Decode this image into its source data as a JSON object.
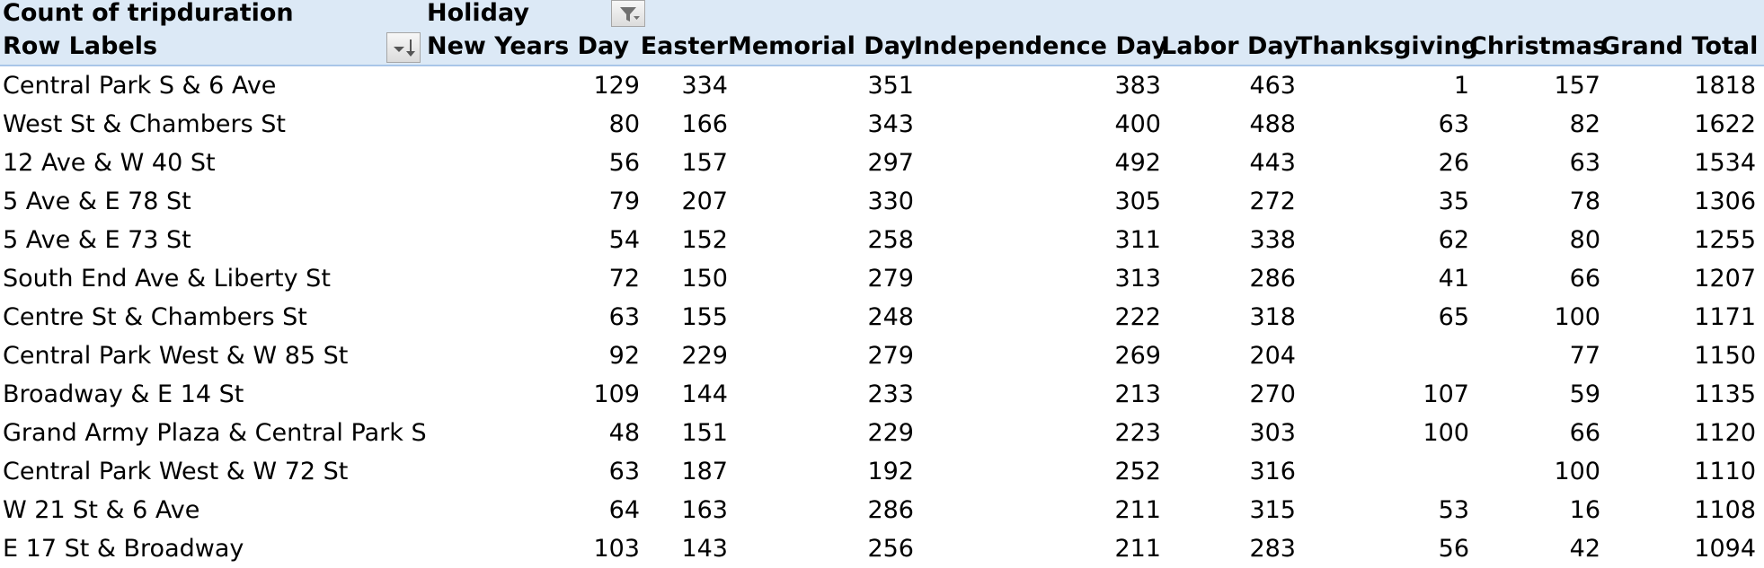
{
  "pivot": {
    "value_field": "Count of tripduration",
    "column_field": "Holiday",
    "row_labels": "Row Labels",
    "columns": [
      "New Years Day",
      "Easter",
      "Memorial Day",
      "Independence Day",
      "Labor Day",
      "Thanksgiving",
      "Christmas",
      "Grand Total"
    ],
    "rows": [
      {
        "label": "Central Park S & 6 Ave",
        "values": [
          "129",
          "334",
          "351",
          "383",
          "463",
          "1",
          "157",
          "1818"
        ]
      },
      {
        "label": "West St & Chambers St",
        "values": [
          "80",
          "166",
          "343",
          "400",
          "488",
          "63",
          "82",
          "1622"
        ]
      },
      {
        "label": "12 Ave & W 40 St",
        "values": [
          "56",
          "157",
          "297",
          "492",
          "443",
          "26",
          "63",
          "1534"
        ]
      },
      {
        "label": "5 Ave & E 78 St",
        "values": [
          "79",
          "207",
          "330",
          "305",
          "272",
          "35",
          "78",
          "1306"
        ]
      },
      {
        "label": "5 Ave & E 73 St",
        "values": [
          "54",
          "152",
          "258",
          "311",
          "338",
          "62",
          "80",
          "1255"
        ]
      },
      {
        "label": "South End Ave & Liberty St",
        "values": [
          "72",
          "150",
          "279",
          "313",
          "286",
          "41",
          "66",
          "1207"
        ]
      },
      {
        "label": "Centre St & Chambers St",
        "values": [
          "63",
          "155",
          "248",
          "222",
          "318",
          "65",
          "100",
          "1171"
        ]
      },
      {
        "label": "Central Park West & W 85 St",
        "values": [
          "92",
          "229",
          "279",
          "269",
          "204",
          "",
          "77",
          "1150"
        ]
      },
      {
        "label": "Broadway & E 14 St",
        "values": [
          "109",
          "144",
          "233",
          "213",
          "270",
          "107",
          "59",
          "1135"
        ]
      },
      {
        "label": "Grand Army Plaza & Central Park S",
        "values": [
          "48",
          "151",
          "229",
          "223",
          "303",
          "100",
          "66",
          "1120"
        ]
      },
      {
        "label": "Central Park West & W 72 St",
        "values": [
          "63",
          "187",
          "192",
          "252",
          "316",
          "",
          "100",
          "1110"
        ]
      },
      {
        "label": "W 21 St & 6 Ave",
        "values": [
          "64",
          "163",
          "286",
          "211",
          "315",
          "53",
          "16",
          "1108"
        ]
      },
      {
        "label": "E 17 St & Broadway",
        "values": [
          "103",
          "143",
          "256",
          "211",
          "283",
          "56",
          "42",
          "1094"
        ]
      }
    ]
  },
  "icons": {
    "column_filter": "filter-funnel-icon",
    "row_sort": "sort-dropdown-icon"
  },
  "colors": {
    "header_bg": "#dce9f6",
    "header_border": "#a9c6e8"
  }
}
